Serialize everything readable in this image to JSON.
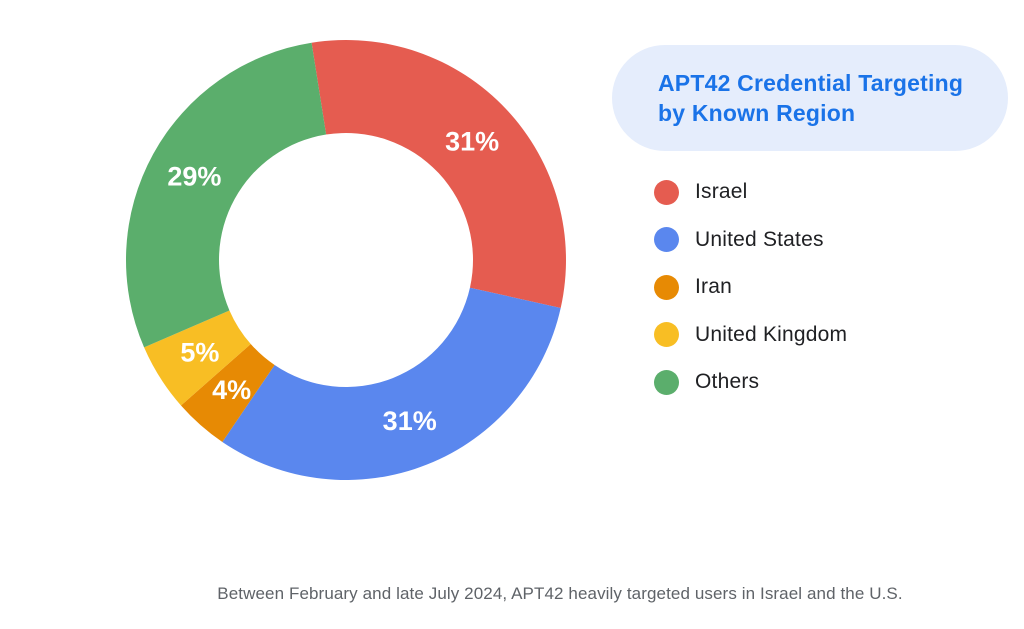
{
  "title": {
    "lines": [
      "APT42 Credential Targeting",
      "by Known Region"
    ],
    "text_color": "#1A73E8",
    "pill_background": "#E5EDFC"
  },
  "legend": {
    "position": "right",
    "items": [
      {
        "label": "Israel",
        "color": "#E55C50"
      },
      {
        "label": "United States",
        "color": "#5A87EE"
      },
      {
        "label": "Iran",
        "color": "#E78A04"
      },
      {
        "label": "United Kingdom",
        "color": "#F8BE24"
      },
      {
        "label": "Others",
        "color": "#5BAE6C"
      }
    ]
  },
  "chart_data": {
    "type": "pie",
    "variant": "donut",
    "title": "APT42 Credential Targeting by Known Region",
    "categories": [
      "Israel",
      "United States",
      "Iran",
      "United Kingdom",
      "Others"
    ],
    "values": [
      31,
      31,
      4,
      5,
      29
    ],
    "slice_labels": [
      "31%",
      "31%",
      "4%",
      "5%",
      "29%"
    ],
    "colors": [
      "#E55C50",
      "#5A87EE",
      "#E78A04",
      "#F8BE24",
      "#5BAE6C"
    ],
    "unit": "%",
    "start_angle_deg": -9,
    "direction": "clockwise",
    "legend_position": "right",
    "label_color": "#ffffff"
  },
  "caption": {
    "text": "Between February and late July 2024, APT42 heavily targeted users in Israel and the U.S."
  }
}
